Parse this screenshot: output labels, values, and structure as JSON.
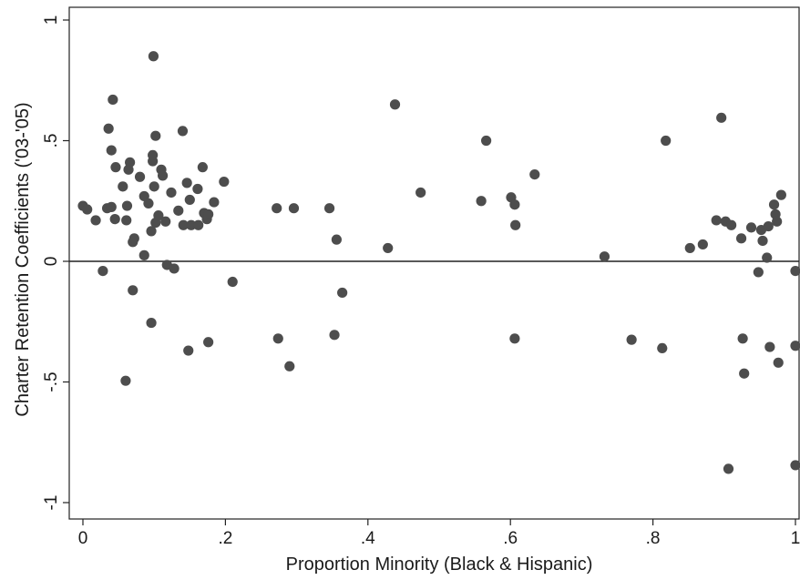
{
  "chart_data": {
    "type": "scatter",
    "title": "",
    "xlabel": "Proportion Minority (Black & Hispanic)",
    "ylabel": "Charter Retention Coefficients ('03-'05)",
    "xlim": [
      0,
      1
    ],
    "ylim": [
      -1,
      1
    ],
    "x_ticks": [
      {
        "value": 0,
        "label": "0"
      },
      {
        "value": 0.2,
        "label": ".2"
      },
      {
        "value": 0.4,
        "label": ".4"
      },
      {
        "value": 0.6,
        "label": ".6"
      },
      {
        "value": 0.8,
        "label": ".8"
      },
      {
        "value": 1,
        "label": "1"
      }
    ],
    "y_ticks": [
      {
        "value": 1,
        "label": "1"
      },
      {
        "value": 0.5,
        "label": ".5"
      },
      {
        "value": 0,
        "label": "0"
      },
      {
        "value": -0.5,
        "label": "-.5"
      },
      {
        "value": -1,
        "label": "-1"
      }
    ],
    "reference_line_y": 0,
    "grid": false,
    "marker_color": "#4d4d4d",
    "points": [
      {
        "x": 0.0,
        "y": 0.23
      },
      {
        "x": 0.006,
        "y": 0.215
      },
      {
        "x": 0.018,
        "y": 0.17
      },
      {
        "x": 0.028,
        "y": -0.04
      },
      {
        "x": 0.034,
        "y": 0.22
      },
      {
        "x": 0.036,
        "y": 0.55
      },
      {
        "x": 0.04,
        "y": 0.225
      },
      {
        "x": 0.04,
        "y": 0.46
      },
      {
        "x": 0.042,
        "y": 0.67
      },
      {
        "x": 0.045,
        "y": 0.175
      },
      {
        "x": 0.046,
        "y": 0.39
      },
      {
        "x": 0.056,
        "y": 0.31
      },
      {
        "x": 0.06,
        "y": -0.495
      },
      {
        "x": 0.061,
        "y": 0.17
      },
      {
        "x": 0.062,
        "y": 0.23
      },
      {
        "x": 0.064,
        "y": 0.38
      },
      {
        "x": 0.066,
        "y": 0.41
      },
      {
        "x": 0.07,
        "y": -0.12
      },
      {
        "x": 0.07,
        "y": 0.08
      },
      {
        "x": 0.072,
        "y": 0.095
      },
      {
        "x": 0.08,
        "y": 0.35
      },
      {
        "x": 0.086,
        "y": 0.025
      },
      {
        "x": 0.086,
        "y": 0.27
      },
      {
        "x": 0.092,
        "y": 0.24
      },
      {
        "x": 0.096,
        "y": -0.255
      },
      {
        "x": 0.096,
        "y": 0.125
      },
      {
        "x": 0.098,
        "y": 0.415
      },
      {
        "x": 0.098,
        "y": 0.44
      },
      {
        "x": 0.099,
        "y": 0.85
      },
      {
        "x": 0.1,
        "y": 0.31
      },
      {
        "x": 0.102,
        "y": 0.16
      },
      {
        "x": 0.102,
        "y": 0.52
      },
      {
        "x": 0.106,
        "y": 0.19
      },
      {
        "x": 0.11,
        "y": 0.38
      },
      {
        "x": 0.112,
        "y": 0.355
      },
      {
        "x": 0.116,
        "y": 0.165
      },
      {
        "x": 0.118,
        "y": -0.015
      },
      {
        "x": 0.124,
        "y": 0.285
      },
      {
        "x": 0.128,
        "y": -0.03
      },
      {
        "x": 0.134,
        "y": 0.21
      },
      {
        "x": 0.14,
        "y": 0.54
      },
      {
        "x": 0.141,
        "y": 0.15
      },
      {
        "x": 0.146,
        "y": 0.325
      },
      {
        "x": 0.148,
        "y": -0.37
      },
      {
        "x": 0.15,
        "y": 0.255
      },
      {
        "x": 0.152,
        "y": 0.15
      },
      {
        "x": 0.161,
        "y": 0.3
      },
      {
        "x": 0.162,
        "y": 0.15
      },
      {
        "x": 0.168,
        "y": 0.39
      },
      {
        "x": 0.17,
        "y": 0.2
      },
      {
        "x": 0.174,
        "y": 0.175
      },
      {
        "x": 0.176,
        "y": -0.335
      },
      {
        "x": 0.176,
        "y": 0.195
      },
      {
        "x": 0.184,
        "y": 0.245
      },
      {
        "x": 0.198,
        "y": 0.33
      },
      {
        "x": 0.21,
        "y": -0.085
      },
      {
        "x": 0.272,
        "y": 0.22
      },
      {
        "x": 0.274,
        "y": -0.32
      },
      {
        "x": 0.29,
        "y": -0.435
      },
      {
        "x": 0.296,
        "y": 0.22
      },
      {
        "x": 0.346,
        "y": 0.22
      },
      {
        "x": 0.353,
        "y": -0.305
      },
      {
        "x": 0.356,
        "y": 0.09
      },
      {
        "x": 0.364,
        "y": -0.13
      },
      {
        "x": 0.428,
        "y": 0.055
      },
      {
        "x": 0.438,
        "y": 0.65
      },
      {
        "x": 0.474,
        "y": 0.285
      },
      {
        "x": 0.559,
        "y": 0.25
      },
      {
        "x": 0.566,
        "y": 0.5
      },
      {
        "x": 0.601,
        "y": 0.265
      },
      {
        "x": 0.606,
        "y": 0.235
      },
      {
        "x": 0.606,
        "y": -0.32
      },
      {
        "x": 0.607,
        "y": 0.15
      },
      {
        "x": 0.634,
        "y": 0.36
      },
      {
        "x": 0.732,
        "y": 0.02
      },
      {
        "x": 0.77,
        "y": -0.325
      },
      {
        "x": 0.813,
        "y": -0.36
      },
      {
        "x": 0.818,
        "y": 0.5
      },
      {
        "x": 0.852,
        "y": 0.055
      },
      {
        "x": 0.87,
        "y": 0.07
      },
      {
        "x": 0.889,
        "y": 0.17
      },
      {
        "x": 0.896,
        "y": 0.595
      },
      {
        "x": 0.902,
        "y": 0.165
      },
      {
        "x": 0.906,
        "y": -0.86
      },
      {
        "x": 0.91,
        "y": 0.15
      },
      {
        "x": 0.924,
        "y": 0.095
      },
      {
        "x": 0.926,
        "y": -0.32
      },
      {
        "x": 0.928,
        "y": -0.465
      },
      {
        "x": 0.938,
        "y": 0.14
      },
      {
        "x": 0.948,
        "y": -0.045
      },
      {
        "x": 0.952,
        "y": 0.13
      },
      {
        "x": 0.954,
        "y": 0.085
      },
      {
        "x": 0.96,
        "y": 0.015
      },
      {
        "x": 0.962,
        "y": 0.145
      },
      {
        "x": 0.964,
        "y": -0.355
      },
      {
        "x": 0.97,
        "y": 0.235
      },
      {
        "x": 0.972,
        "y": 0.195
      },
      {
        "x": 0.974,
        "y": 0.165
      },
      {
        "x": 0.976,
        "y": -0.42
      },
      {
        "x": 0.98,
        "y": 0.275
      },
      {
        "x": 1.0,
        "y": -0.04
      },
      {
        "x": 1.0,
        "y": -0.35
      },
      {
        "x": 1.0,
        "y": -0.845
      }
    ]
  }
}
